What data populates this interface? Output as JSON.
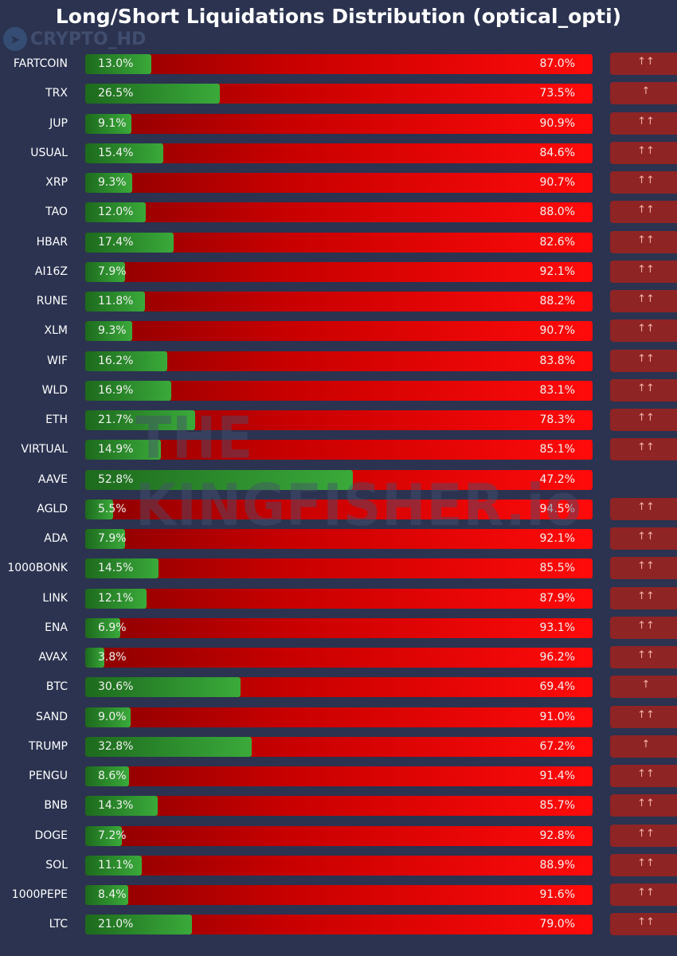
{
  "title": "Long/Short Liquidations Distribution (optical_opti)",
  "watermark_channel": "CRYPTO_HD",
  "watermark_brand": "THE KINGFISHER.io",
  "colors": {
    "long": "#3aaa3a",
    "short": "#ff0a0a",
    "badge": "#8f2424",
    "background": "#2b3350"
  },
  "chart_data": {
    "type": "bar",
    "orientation": "horizontal-stacked-100",
    "title": "Long/Short Liquidations Distribution (optical_opti)",
    "categories": [
      "FARTCOIN",
      "TRX",
      "JUP",
      "USUAL",
      "XRP",
      "TAO",
      "HBAR",
      "AI16Z",
      "RUNE",
      "XLM",
      "WIF",
      "WLD",
      "ETH",
      "VIRTUAL",
      "AAVE",
      "AGLD",
      "ADA",
      "1000BONK",
      "LINK",
      "ENA",
      "AVAX",
      "BTC",
      "SAND",
      "TRUMP",
      "PENGU",
      "BNB",
      "DOGE",
      "SOL",
      "1000PEPE",
      "LTC"
    ],
    "series": [
      {
        "name": "Long",
        "values": [
          13.0,
          26.5,
          9.1,
          15.4,
          9.3,
          12.0,
          17.4,
          7.9,
          11.8,
          9.3,
          16.2,
          16.9,
          21.7,
          14.9,
          52.8,
          5.5,
          7.9,
          14.5,
          12.1,
          6.9,
          3.8,
          30.6,
          9.0,
          32.8,
          8.6,
          14.3,
          7.2,
          11.1,
          8.4,
          21.0
        ]
      },
      {
        "name": "Short",
        "values": [
          87.0,
          73.5,
          90.9,
          84.6,
          90.7,
          88.0,
          82.6,
          92.1,
          88.2,
          90.7,
          83.8,
          83.1,
          78.3,
          85.1,
          47.2,
          94.5,
          92.1,
          85.5,
          87.9,
          93.1,
          96.2,
          69.4,
          91.0,
          67.2,
          91.4,
          85.7,
          92.8,
          88.9,
          91.6,
          79.0
        ]
      }
    ],
    "signals": [
      "↑↑",
      "↑",
      "↑↑",
      "↑↑",
      "↑↑",
      "↑↑",
      "↑↑",
      "↑↑",
      "↑↑",
      "↑↑",
      "↑↑",
      "↑↑",
      "↑↑",
      "↑↑",
      "",
      "↑↑",
      "↑↑",
      "↑↑",
      "↑↑",
      "↑↑",
      "↑↑",
      "↑",
      "↑↑",
      "↑",
      "↑↑",
      "↑↑",
      "↑↑",
      "↑↑",
      "↑↑",
      "↑↑"
    ],
    "xlim": [
      0,
      100
    ]
  }
}
